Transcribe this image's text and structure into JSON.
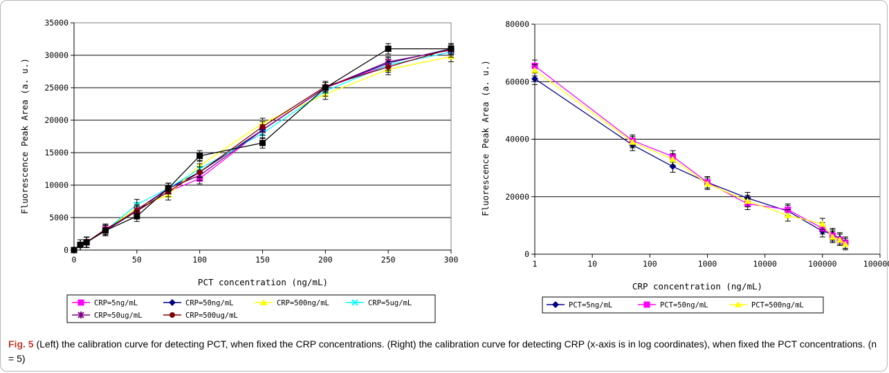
{
  "caption": {
    "label": "Fig. 5",
    "text": "(Left) the calibration curve for detecting PCT, when fixed the CRP concentrations. (Right) the calibration curve for detecting CRP (x-axis is in log coordinates), when fixed the PCT concentrations. (n = 5)"
  },
  "chart_data": [
    {
      "type": "line",
      "xlabel": "PCT concentration (ng/mL)",
      "ylabel": "Fluorescence Peak Area (a. u.)",
      "xlim": [
        0,
        300
      ],
      "ylim": [
        0,
        35000
      ],
      "xticks": [
        0,
        50,
        100,
        150,
        200,
        250,
        300
      ],
      "yticks": [
        0,
        5000,
        10000,
        15000,
        20000,
        25000,
        30000,
        35000
      ],
      "grid": "horizontal",
      "legend_position": "bottom",
      "x": [
        0,
        5,
        10,
        25,
        50,
        75,
        100,
        150,
        200,
        250,
        300
      ],
      "series": [
        {
          "name": "CRP=5ng/mL",
          "color": "#ff00ff",
          "marker": "square",
          "values": [
            0,
            800,
            1200,
            3200,
            6000,
            9000,
            11000,
            18500,
            25000,
            28500,
            30500
          ],
          "error": 800
        },
        {
          "name": "CRP=50ng/mL",
          "color": "#000080",
          "marker": "diamond",
          "values": [
            0,
            800,
            1200,
            3000,
            6000,
            9500,
            12000,
            18500,
            25000,
            28800,
            31000
          ],
          "error": 800
        },
        {
          "name": "CRP=500ng/mL",
          "color": "#ffff00",
          "marker": "triangle",
          "values": [
            0,
            800,
            1200,
            3000,
            6500,
            8500,
            13000,
            19500,
            24000,
            27800,
            29800
          ],
          "error": 800
        },
        {
          "name": "CRP=5ug/mL",
          "color": "#00ffff",
          "marker": "x",
          "values": [
            0,
            800,
            1200,
            3000,
            7000,
            9500,
            12500,
            18000,
            24500,
            28500,
            30500
          ],
          "error": 800
        },
        {
          "name": "CRP=50ug/mL",
          "color": "#800080",
          "marker": "star",
          "values": [
            0,
            800,
            1200,
            3000,
            6200,
            9500,
            11500,
            18500,
            25000,
            29000,
            30800
          ],
          "error": 800
        },
        {
          "name": "CRP=500ug/mL",
          "color": "#800000",
          "marker": "circle",
          "values": [
            0,
            800,
            1200,
            3200,
            6000,
            9000,
            12000,
            19000,
            25200,
            28200,
            31000
          ],
          "error": 800
        },
        {
          "name": "",
          "color": "#000000",
          "marker": "square",
          "values": [
            0,
            800,
            1200,
            3000,
            5200,
            9500,
            14500,
            16500,
            25000,
            31000,
            31000
          ],
          "error": 800
        }
      ]
    },
    {
      "type": "line",
      "xlabel": "CRP concentration (ng/mL)",
      "ylabel": "Fluorescence Peak Area (a. u.)",
      "xscale": "log",
      "xlim": [
        1,
        1000000
      ],
      "ylim": [
        0,
        80000
      ],
      "xticks": [
        1,
        10,
        100,
        1000,
        10000,
        100000,
        1000000
      ],
      "xtick_labels": [
        "1",
        "10",
        "100",
        "1000",
        "10000",
        "100000",
        "1000000"
      ],
      "yticks": [
        0,
        20000,
        40000,
        60000,
        80000
      ],
      "grid": "horizontal",
      "legend_position": "bottom",
      "x": [
        1,
        50,
        250,
        1000,
        5000,
        25000,
        100000,
        150000,
        200000,
        250000
      ],
      "series": [
        {
          "name": "PCT=5ng/mL",
          "color": "#000080",
          "marker": "diamond",
          "values": [
            61000,
            38000,
            30500,
            25000,
            19500,
            15000,
            8000,
            7000,
            5500,
            4000
          ],
          "error": 2000
        },
        {
          "name": "PCT=50ng/mL",
          "color": "#ff00ff",
          "marker": "square",
          "values": [
            65500,
            39500,
            34000,
            25000,
            17500,
            15500,
            9000,
            6500,
            5000,
            4000
          ],
          "error": 2000
        },
        {
          "name": "PCT=500ng/mL",
          "color": "#ffff00",
          "marker": "triangle",
          "values": [
            64000,
            39000,
            33000,
            24500,
            18500,
            13500,
            10500,
            6000,
            5000,
            3500
          ],
          "error": 2000
        }
      ]
    }
  ]
}
